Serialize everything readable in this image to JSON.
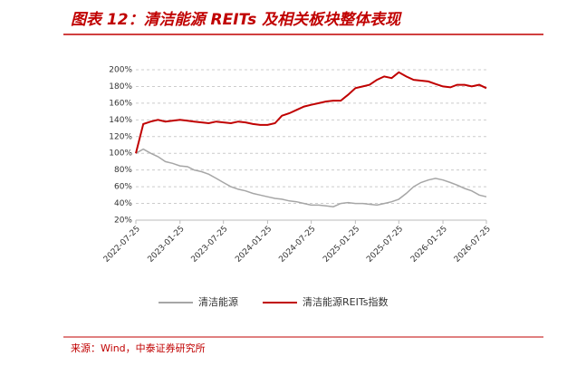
{
  "chart_data": {
    "type": "line",
    "title": "图表 12：清洁能源 REITs 及相关板块整体表现",
    "source": "来源：Wind，中泰证券研究所",
    "x": [
      "2022-07-25",
      "2022-08-25",
      "2022-09-25",
      "2022-10-25",
      "2022-11-25",
      "2022-12-25",
      "2023-01-25",
      "2023-02-25",
      "2023-03-25",
      "2023-04-25",
      "2023-05-25",
      "2023-06-25",
      "2023-07-25",
      "2023-08-25",
      "2023-09-25",
      "2023-10-25",
      "2023-11-25",
      "2023-12-25",
      "2024-01-25",
      "2024-02-25",
      "2024-03-25",
      "2024-04-25",
      "2024-05-25",
      "2024-06-25",
      "2024-07-25",
      "2024-08-25",
      "2024-09-25",
      "2024-10-25",
      "2024-11-25",
      "2024-12-25",
      "2025-01-25",
      "2025-02-25",
      "2025-03-25",
      "2025-04-25",
      "2025-05-25",
      "2025-06-25",
      "2025-07-25",
      "2025-08-25",
      "2025-09-25",
      "2025-10-25",
      "2025-11-25",
      "2025-12-25",
      "2026-01-25",
      "2026-02-25",
      "2026-03-25",
      "2026-04-25",
      "2026-05-25",
      "2026-06-25",
      "2026-07-25"
    ],
    "series": [
      {
        "name": "清洁能源",
        "color": "#a6a6a6",
        "values": [
          100,
          105,
          100,
          96,
          90,
          88,
          85,
          84,
          80,
          78,
          75,
          70,
          65,
          60,
          57,
          55,
          52,
          50,
          48,
          46,
          45,
          43,
          42,
          40,
          38,
          38,
          37,
          36,
          40,
          41,
          40,
          40,
          39,
          38,
          40,
          42,
          45,
          52,
          60,
          65,
          68,
          70,
          68,
          65,
          62,
          58,
          55,
          50,
          48
        ]
      },
      {
        "name": "清洁能源REITs指数",
        "color": "#c00000",
        "values": [
          100,
          135,
          138,
          140,
          138,
          139,
          140,
          139,
          138,
          137,
          136,
          138,
          137,
          136,
          138,
          137,
          135,
          134,
          134,
          136,
          145,
          148,
          152,
          156,
          158,
          160,
          162,
          163,
          163,
          170,
          178,
          180,
          182,
          188,
          192,
          190,
          197,
          192,
          188,
          187,
          186,
          183,
          180,
          179,
          182,
          182,
          180,
          182,
          178
        ]
      }
    ],
    "xlim": [
      "2022-07-25",
      "2026-07-25"
    ],
    "xticks": [
      "2022-07-25",
      "2023-01-25",
      "2023-07-25",
      "2024-01-25",
      "2024-07-25",
      "2025-01-25",
      "2025-07-25",
      "2026-01-25",
      "2026-07-25"
    ],
    "ylim": [
      20,
      200
    ],
    "yticks": [
      {
        "value": 20,
        "label": "20%"
      },
      {
        "value": 40,
        "label": "40%"
      },
      {
        "value": 60,
        "label": "60%"
      },
      {
        "value": 80,
        "label": "80%"
      },
      {
        "value": 100,
        "label": "100%"
      },
      {
        "value": 120,
        "label": "120%"
      },
      {
        "value": 140,
        "label": "140%"
      },
      {
        "value": 160,
        "label": "160%"
      },
      {
        "value": 180,
        "label": "180%"
      },
      {
        "value": 200,
        "label": "200%"
      }
    ],
    "grid": true
  }
}
